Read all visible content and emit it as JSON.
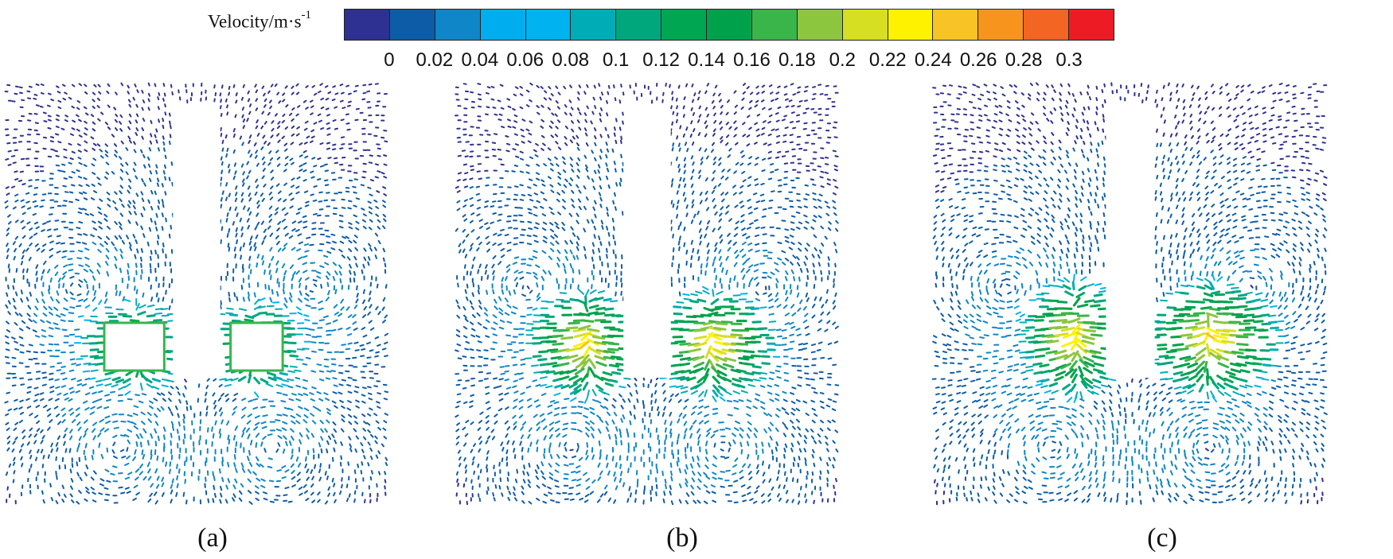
{
  "legend": {
    "title_text": "Velocity/m·s",
    "title_exp": "-1",
    "ticks": [
      "0",
      "0.02",
      "0.04",
      "0.06",
      "0.08",
      "0.1",
      "0.12",
      "0.14",
      "0.16",
      "0.18",
      "0.2",
      "0.22",
      "0.24",
      "0.26",
      "0.28",
      "0.3"
    ],
    "colors": [
      "#2e3192",
      "#0d5ca8",
      "#0f86c7",
      "#00aeef",
      "#00b2ef",
      "#00adb7",
      "#00a77c",
      "#00a651",
      "#00a14b",
      "#39b54a",
      "#8cc63f",
      "#d7df23",
      "#fff200",
      "#f7c325",
      "#f7941d",
      "#f26522",
      "#ed1c24"
    ]
  },
  "panels": [
    {
      "caption": "(a)",
      "variant": "a"
    },
    {
      "caption": "(b)",
      "variant": "b"
    },
    {
      "caption": "(c)",
      "variant": "c"
    }
  ]
}
